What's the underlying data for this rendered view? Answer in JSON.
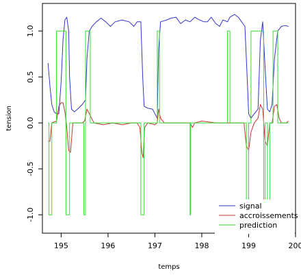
{
  "chart_data": {
    "type": "line",
    "xlabel": "temps",
    "ylabel": "tension",
    "xlim": [
      194.6,
      200.0
    ],
    "ylim": [
      -1.2,
      1.3
    ],
    "x_ticks": [
      {
        "v": 195,
        "label": "195"
      },
      {
        "v": 196,
        "label": "196"
      },
      {
        "v": 197,
        "label": "197"
      },
      {
        "v": 198,
        "label": "198"
      },
      {
        "v": 199,
        "label": "199"
      },
      {
        "v": 200,
        "label": "200"
      }
    ],
    "y_ticks": [
      {
        "v": -1.0,
        "label": "-1.0"
      },
      {
        "v": -0.5,
        "label": "-0.5"
      },
      {
        "v": 0.0,
        "label": "0.0"
      },
      {
        "v": 0.5,
        "label": "0.5"
      },
      {
        "v": 1.0,
        "label": "1.0"
      }
    ],
    "grid": false,
    "legend_position": "bottom-right",
    "series": [
      {
        "name": "signal",
        "color": "#3333cc",
        "points": [
          [
            194.72,
            0.65
          ],
          [
            194.76,
            0.4
          ],
          [
            194.8,
            0.2
          ],
          [
            194.85,
            0.12
          ],
          [
            194.9,
            0.1
          ],
          [
            194.95,
            0.1
          ],
          [
            195.0,
            0.45
          ],
          [
            195.04,
            0.9
          ],
          [
            195.08,
            1.12
          ],
          [
            195.12,
            1.15
          ],
          [
            195.16,
            1.0
          ],
          [
            195.18,
            0.5
          ],
          [
            195.22,
            0.15
          ],
          [
            195.28,
            0.12
          ],
          [
            195.35,
            0.15
          ],
          [
            195.45,
            0.2
          ],
          [
            195.52,
            0.25
          ],
          [
            195.55,
            0.7
          ],
          [
            195.6,
            1.0
          ],
          [
            195.66,
            1.05
          ],
          [
            195.75,
            1.1
          ],
          [
            195.85,
            1.14
          ],
          [
            195.95,
            1.1
          ],
          [
            196.05,
            1.05
          ],
          [
            196.15,
            1.1
          ],
          [
            196.3,
            1.12
          ],
          [
            196.45,
            1.1
          ],
          [
            196.55,
            1.05
          ],
          [
            196.62,
            1.1
          ],
          [
            196.7,
            1.1
          ],
          [
            196.74,
            0.5
          ],
          [
            196.77,
            0.18
          ],
          [
            196.85,
            0.16
          ],
          [
            196.95,
            0.15
          ],
          [
            197.0,
            0.1
          ],
          [
            197.05,
            0.05
          ],
          [
            197.08,
            0.8
          ],
          [
            197.12,
            1.1
          ],
          [
            197.25,
            1.12
          ],
          [
            197.35,
            1.14
          ],
          [
            197.45,
            1.15
          ],
          [
            197.55,
            1.08
          ],
          [
            197.65,
            1.12
          ],
          [
            197.75,
            1.1
          ],
          [
            197.85,
            1.15
          ],
          [
            197.95,
            1.12
          ],
          [
            198.05,
            1.1
          ],
          [
            198.12,
            1.1
          ],
          [
            198.2,
            1.15
          ],
          [
            198.3,
            1.08
          ],
          [
            198.38,
            1.05
          ],
          [
            198.45,
            1.12
          ],
          [
            198.55,
            1.1
          ],
          [
            198.6,
            1.15
          ],
          [
            198.7,
            1.18
          ],
          [
            198.78,
            1.15
          ],
          [
            198.85,
            1.1
          ],
          [
            198.92,
            1.05
          ],
          [
            198.96,
            0.6
          ],
          [
            199.0,
            0.1
          ],
          [
            199.05,
            0.05
          ],
          [
            199.12,
            0.1
          ],
          [
            199.2,
            0.15
          ],
          [
            199.25,
            0.9
          ],
          [
            199.3,
            1.1
          ],
          [
            199.35,
            0.6
          ],
          [
            199.4,
            0.15
          ],
          [
            199.45,
            0.12
          ],
          [
            199.5,
            0.2
          ],
          [
            199.55,
            0.7
          ],
          [
            199.62,
            1.0
          ],
          [
            199.7,
            1.05
          ],
          [
            199.78,
            1.06
          ],
          [
            199.85,
            1.05
          ]
        ]
      },
      {
        "name": "accroissements",
        "color": "#cc3333",
        "points": [
          [
            194.72,
            -0.2
          ],
          [
            194.76,
            -0.2
          ],
          [
            194.8,
            0.0
          ],
          [
            194.9,
            0.02
          ],
          [
            194.95,
            0.18
          ],
          [
            195.0,
            0.22
          ],
          [
            195.04,
            0.22
          ],
          [
            195.08,
            0.12
          ],
          [
            195.12,
            -0.05
          ],
          [
            195.16,
            -0.3
          ],
          [
            195.2,
            -0.32
          ],
          [
            195.25,
            0.0
          ],
          [
            195.35,
            0.0
          ],
          [
            195.45,
            0.0
          ],
          [
            195.5,
            0.02
          ],
          [
            195.55,
            0.15
          ],
          [
            195.6,
            0.1
          ],
          [
            195.7,
            0.0
          ],
          [
            195.9,
            -0.02
          ],
          [
            196.1,
            0.0
          ],
          [
            196.3,
            -0.02
          ],
          [
            196.5,
            0.0
          ],
          [
            196.62,
            0.0
          ],
          [
            196.68,
            -0.05
          ],
          [
            196.72,
            -0.32
          ],
          [
            196.75,
            -0.38
          ],
          [
            196.78,
            -0.05
          ],
          [
            196.85,
            0.0
          ],
          [
            197.0,
            -0.02
          ],
          [
            197.05,
            0.0
          ],
          [
            197.08,
            0.15
          ],
          [
            197.12,
            0.05
          ],
          [
            197.2,
            0.0
          ],
          [
            197.5,
            0.0
          ],
          [
            197.75,
            0.0
          ],
          [
            197.8,
            -0.05
          ],
          [
            197.85,
            0.0
          ],
          [
            198.0,
            0.02
          ],
          [
            198.3,
            0.0
          ],
          [
            198.6,
            0.0
          ],
          [
            198.9,
            0.0
          ],
          [
            198.95,
            -0.25
          ],
          [
            199.0,
            -0.3
          ],
          [
            199.05,
            -0.1
          ],
          [
            199.12,
            0.0
          ],
          [
            199.2,
            0.05
          ],
          [
            199.25,
            0.2
          ],
          [
            199.3,
            0.15
          ],
          [
            199.35,
            -0.2
          ],
          [
            199.4,
            -0.25
          ],
          [
            199.45,
            0.0
          ],
          [
            199.5,
            0.0
          ],
          [
            199.55,
            0.18
          ],
          [
            199.6,
            0.2
          ],
          [
            199.65,
            0.05
          ],
          [
            199.7,
            0.0
          ],
          [
            199.8,
            0.0
          ],
          [
            199.85,
            0.02
          ]
        ]
      },
      {
        "name": "prediction",
        "color": "#33dd33",
        "points": [
          [
            194.72,
            0.0
          ],
          [
            194.74,
            0.0
          ],
          [
            194.74,
            -1.0
          ],
          [
            194.8,
            -1.0
          ],
          [
            194.8,
            0.0
          ],
          [
            194.9,
            0.0
          ],
          [
            194.9,
            1.0
          ],
          [
            195.1,
            1.0
          ],
          [
            195.1,
            -1.0
          ],
          [
            195.18,
            -1.0
          ],
          [
            195.18,
            0.0
          ],
          [
            195.48,
            0.0
          ],
          [
            195.48,
            -1.0
          ],
          [
            195.52,
            -1.0
          ],
          [
            195.52,
            1.0
          ],
          [
            195.62,
            1.0
          ],
          [
            195.62,
            0.0
          ],
          [
            196.7,
            0.0
          ],
          [
            196.7,
            -1.0
          ],
          [
            196.77,
            -1.0
          ],
          [
            196.77,
            0.0
          ],
          [
            197.05,
            0.0
          ],
          [
            197.05,
            1.0
          ],
          [
            197.1,
            1.0
          ],
          [
            197.1,
            0.0
          ],
          [
            197.75,
            0.0
          ],
          [
            197.75,
            -1.0
          ],
          [
            197.76,
            -1.0
          ],
          [
            197.76,
            0.0
          ],
          [
            198.55,
            0.0
          ],
          [
            198.55,
            1.0
          ],
          [
            198.6,
            1.0
          ],
          [
            198.6,
            0.0
          ],
          [
            198.95,
            0.0
          ],
          [
            198.95,
            -1.0
          ],
          [
            199.0,
            -1.0
          ],
          [
            199.0,
            0.0
          ],
          [
            199.05,
            0.0
          ],
          [
            199.05,
            1.0
          ],
          [
            199.32,
            1.0
          ],
          [
            199.32,
            -1.0
          ],
          [
            199.35,
            -1.0
          ],
          [
            199.35,
            0.0
          ],
          [
            199.4,
            0.0
          ],
          [
            199.4,
            -1.0
          ],
          [
            199.45,
            -1.0
          ],
          [
            199.45,
            0.0
          ],
          [
            199.52,
            0.0
          ],
          [
            199.52,
            1.0
          ],
          [
            199.62,
            1.0
          ],
          [
            199.62,
            0.0
          ],
          [
            199.85,
            0.0
          ]
        ]
      }
    ]
  }
}
